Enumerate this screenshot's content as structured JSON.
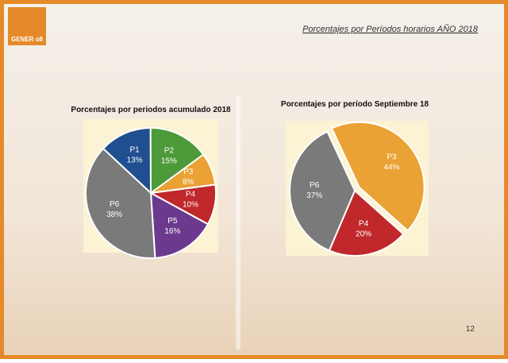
{
  "logo": "GENER o8",
  "header_title": "Porcentajes por Períodos horarios AÑO 2018",
  "page_number": "12",
  "chart_data": [
    {
      "type": "pie",
      "title": "Porcentajes por periodos acumulado 2018",
      "categories": [
        "P1",
        "P2",
        "P3",
        "P4",
        "P5",
        "P6"
      ],
      "values": [
        13,
        15,
        8,
        10,
        16,
        38
      ],
      "value_labels": [
        "13%",
        "15%",
        "8%",
        "10%",
        "16%",
        "38%"
      ],
      "colors": [
        "#1f4f8f",
        "#4c9a3a",
        "#eaa234",
        "#c0282b",
        "#6b3a8e",
        "#7a7a7a"
      ]
    },
    {
      "type": "pie",
      "title": "Porcentajes por período Septiembre 18",
      "categories": [
        "P3",
        "P4",
        "P6"
      ],
      "values": [
        44,
        20,
        37
      ],
      "value_labels": [
        "44%",
        "20%",
        "37%"
      ],
      "colors": [
        "#eaa234",
        "#c0282b",
        "#7a7a7a"
      ]
    }
  ]
}
